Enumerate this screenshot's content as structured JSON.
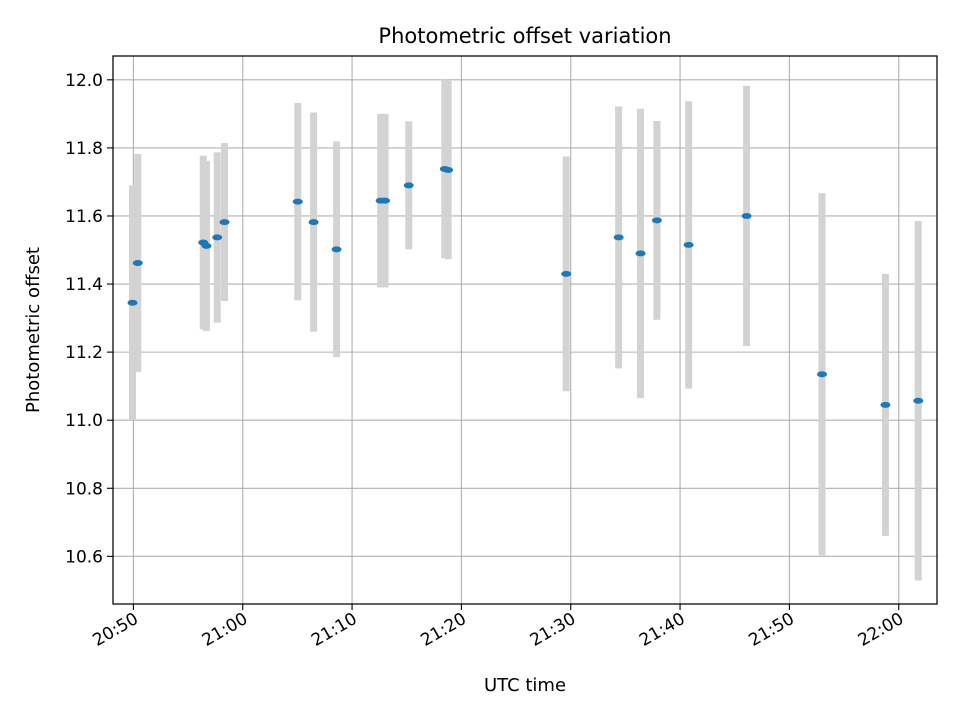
{
  "chart_data": {
    "type": "scatter",
    "title": "Photometric offset variation",
    "xlabel": "UTC time",
    "ylabel": "Photometric offset",
    "x_tick_labels": [
      "20:50",
      "21:00",
      "21:10",
      "21:20",
      "21:30",
      "21:40",
      "21:50",
      "22:00"
    ],
    "y_ticks": [
      10.6,
      10.8,
      11.0,
      11.2,
      11.4,
      11.6,
      11.8,
      12.0
    ],
    "y_tick_labels": [
      "10.6",
      "10.8",
      "11.0",
      "11.2",
      "11.4",
      "11.6",
      "11.8",
      "12.0"
    ],
    "xlim": [
      "20:48:08",
      "22:03:30"
    ],
    "ylim": [
      10.46,
      12.07
    ],
    "grid": true,
    "marker_color": "#1f77b4",
    "errorbar_color": "#d3d3d3",
    "points": [
      {
        "x": "20:49:55",
        "y": 11.345,
        "yerr": 0.345
      },
      {
        "x": "20:50:24",
        "y": 11.462,
        "yerr": 0.32
      },
      {
        "x": "20:56:23",
        "y": 11.522,
        "yerr": 0.255
      },
      {
        "x": "20:56:41",
        "y": 11.512,
        "yerr": 0.25
      },
      {
        "x": "20:57:40",
        "y": 11.537,
        "yerr": 0.25
      },
      {
        "x": "20:58:20",
        "y": 11.582,
        "yerr": 0.232
      },
      {
        "x": "21:05:02",
        "y": 11.642,
        "yerr": 0.29
      },
      {
        "x": "21:06:29",
        "y": 11.582,
        "yerr": 0.322
      },
      {
        "x": "21:08:35",
        "y": 11.502,
        "yerr": 0.317
      },
      {
        "x": "21:12:37",
        "y": 11.645,
        "yerr": 0.255
      },
      {
        "x": "21:13:01",
        "y": 11.645,
        "yerr": 0.255
      },
      {
        "x": "21:15:11",
        "y": 11.69,
        "yerr": 0.188
      },
      {
        "x": "21:18:29",
        "y": 11.738,
        "yerr": 0.262
      },
      {
        "x": "21:18:47",
        "y": 11.735,
        "yerr": 0.262
      },
      {
        "x": "21:29:35",
        "y": 11.43,
        "yerr": 0.345
      },
      {
        "x": "21:34:23",
        "y": 11.537,
        "yerr": 0.385
      },
      {
        "x": "21:36:23",
        "y": 11.49,
        "yerr": 0.425
      },
      {
        "x": "21:37:53",
        "y": 11.587,
        "yerr": 0.292
      },
      {
        "x": "21:40:47",
        "y": 11.515,
        "yerr": 0.422
      },
      {
        "x": "21:46:05",
        "y": 11.6,
        "yerr": 0.382
      },
      {
        "x": "21:52:59",
        "y": 11.135,
        "yerr": 0.532
      },
      {
        "x": "21:58:47",
        "y": 11.045,
        "yerr": 0.385
      },
      {
        "x": "22:01:47",
        "y": 11.057,
        "yerr": 0.528
      }
    ]
  }
}
